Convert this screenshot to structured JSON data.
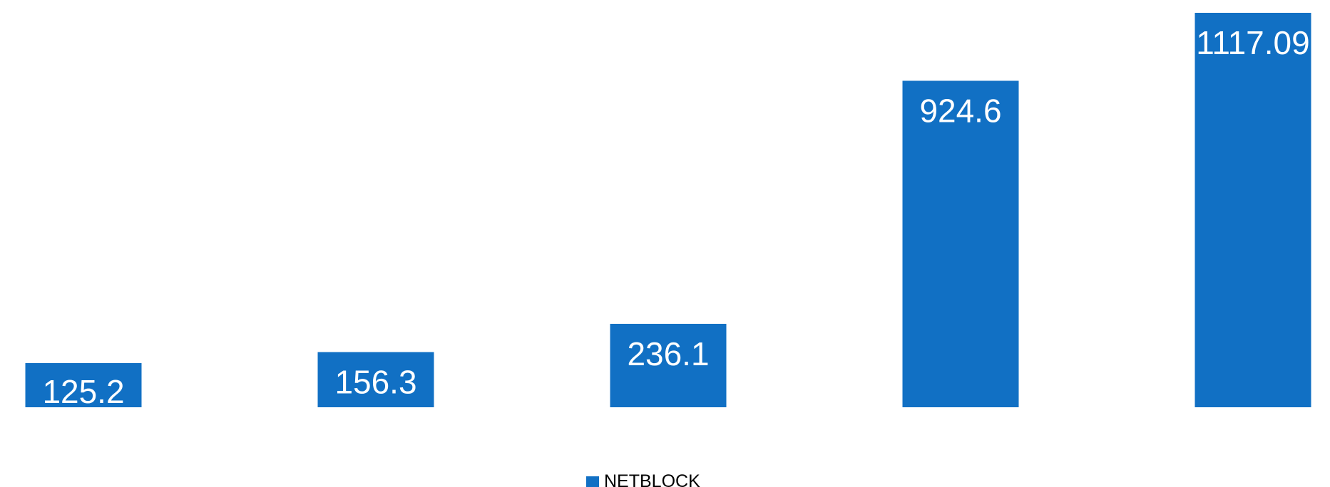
{
  "chart_data": {
    "type": "bar",
    "categories": [
      "",
      "",
      "",
      "",
      ""
    ],
    "series": [
      {
        "name": "NETBLOCK",
        "values": [
          125.2,
          156.3,
          236.1,
          924.6,
          1117.09
        ],
        "labels": [
          "125.2",
          "156.3",
          "236.1",
          "924.6",
          "1117.09"
        ]
      }
    ],
    "title": "",
    "xlabel": "",
    "ylabel": "",
    "ylim": [
      0,
      1117.09
    ],
    "grid": false,
    "legend": "bottom-center",
    "colors": {
      "bar": "#1170C4",
      "label": "#FFFFFF"
    }
  }
}
